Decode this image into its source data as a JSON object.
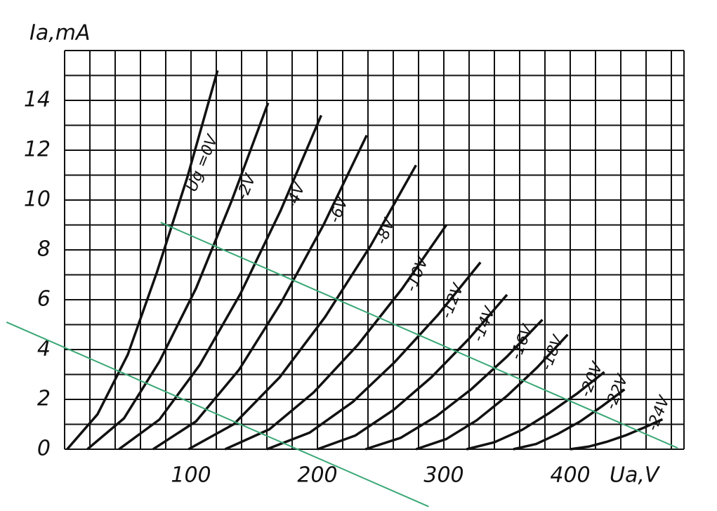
{
  "chart_data": {
    "type": "line",
    "x_label": "Ua,V",
    "y_label": "Ia,mA",
    "xlim": [
      0,
      490
    ],
    "ylim": [
      0,
      16
    ],
    "xticks": [
      100,
      200,
      300,
      400
    ],
    "yticks": [
      0,
      2,
      4,
      6,
      8,
      10,
      12,
      14
    ],
    "xgrid": [
      0,
      20,
      40,
      60,
      80,
      100,
      120,
      140,
      160,
      180,
      200,
      220,
      240,
      260,
      280,
      300,
      320,
      340,
      360,
      380,
      400,
      420,
      440,
      460,
      480
    ],
    "ygrid": [
      0,
      1,
      2,
      3,
      4,
      5,
      6,
      7,
      8,
      9,
      10,
      11,
      12,
      13,
      14,
      15,
      16
    ],
    "grid": true,
    "series": [
      {
        "name": "Ug =0V",
        "color": "#111111",
        "x": [
          2,
          26,
          50,
          73,
          97,
          121
        ],
        "values": [
          0,
          1.4,
          3.8,
          7.1,
          10.9,
          15.2
        ]
      },
      {
        "name": "-2V",
        "color": "#111111",
        "x": [
          18,
          47,
          75,
          104,
          132,
          161
        ],
        "values": [
          0,
          1.24,
          3.52,
          6.46,
          9.95,
          13.9
        ]
      },
      {
        "name": "-4V",
        "color": "#111111",
        "x": [
          43,
          75,
          107,
          139,
          171,
          203
        ],
        "values": [
          0,
          1.19,
          3.39,
          6.23,
          9.59,
          13.4
        ]
      },
      {
        "name": "-6V",
        "color": "#111111",
        "x": [
          70,
          104,
          138,
          171,
          205,
          239
        ],
        "values": [
          0,
          1.12,
          3.19,
          5.86,
          9.02,
          12.6
        ]
      },
      {
        "name": "-8V",
        "color": "#111111",
        "x": [
          98,
          134,
          170,
          206,
          242,
          278
        ],
        "values": [
          0,
          1.01,
          2.88,
          5.3,
          8.16,
          11.4
        ]
      },
      {
        "name": "-10V",
        "color": "#111111",
        "x": [
          127,
          162,
          197,
          232,
          267,
          302
        ],
        "values": [
          0,
          0.8,
          2.28,
          4.19,
          6.44,
          9.0
        ]
      },
      {
        "name": "-12V",
        "color": "#111111",
        "x": [
          160,
          194,
          228,
          261,
          295,
          329
        ],
        "values": [
          0,
          0.67,
          1.9,
          3.49,
          5.37,
          7.5
        ]
      },
      {
        "name": "-14V",
        "color": "#111111",
        "x": [
          200,
          230,
          260,
          290,
          320,
          350
        ],
        "values": [
          0,
          0.55,
          1.57,
          2.88,
          4.44,
          6.2
        ]
      },
      {
        "name": "-16V",
        "color": "#111111",
        "x": [
          238,
          266,
          294,
          322,
          350,
          378
        ],
        "values": [
          0,
          0.46,
          1.32,
          2.42,
          3.72,
          5.2
        ]
      },
      {
        "name": "-18V",
        "color": "#111111",
        "x": [
          278,
          302,
          326,
          350,
          374,
          398
        ],
        "values": [
          0,
          0.41,
          1.16,
          2.14,
          3.29,
          4.6
        ]
      },
      {
        "name": "-20V",
        "color": "#111111",
        "x": [
          318,
          340,
          362,
          383,
          405,
          427
        ],
        "values": [
          0,
          0.28,
          0.78,
          1.44,
          2.22,
          3.1
        ]
      },
      {
        "name": "-22V",
        "color": "#111111",
        "x": [
          355,
          373,
          390,
          408,
          425,
          443
        ],
        "values": [
          0,
          0.21,
          0.61,
          1.12,
          1.72,
          2.4
        ]
      },
      {
        "name": "-24V",
        "color": "#111111",
        "x": [
          400,
          415,
          429,
          444,
          458,
          473
        ],
        "values": [
          0,
          0.11,
          0.3,
          0.56,
          0.86,
          1.2
        ]
      }
    ],
    "load_lines": [
      {
        "color": "#3aa876",
        "x": [
          76,
          485
        ],
        "values": [
          9.1,
          0.05
        ]
      },
      {
        "color": "#3aa876",
        "x": [
          -46,
          288
        ],
        "values": [
          5.1,
          -2.3
        ]
      }
    ]
  }
}
